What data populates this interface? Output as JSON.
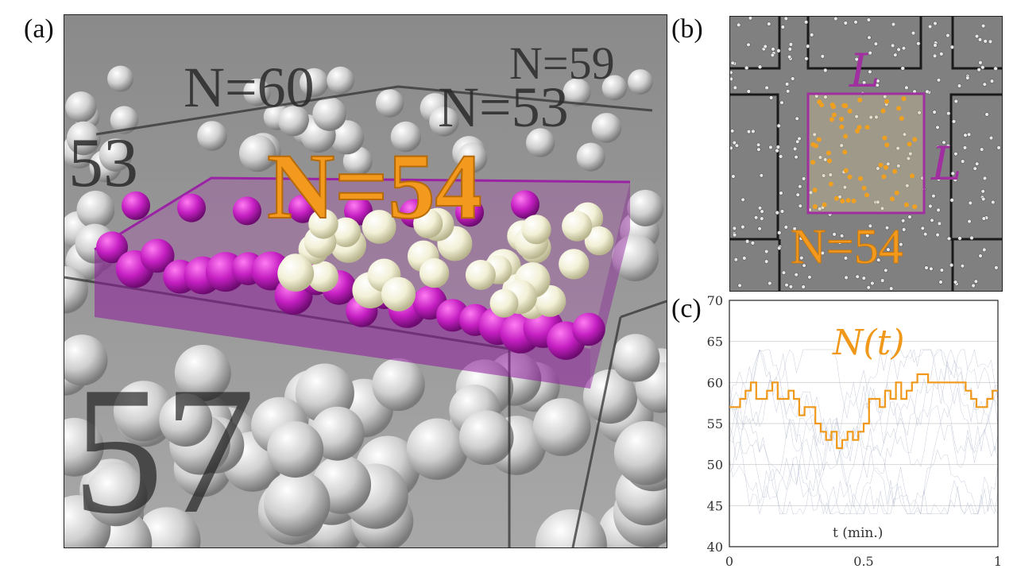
{
  "figure": {
    "panel_a_label": "(a)",
    "panel_b_label": "(b)",
    "panel_c_label": "(c)"
  },
  "panel_a": {
    "main_label": "N=54",
    "background_labels": [
      "N=60",
      "N=53",
      "53",
      "N=59",
      "57"
    ],
    "colors": {
      "box": "#8e1a9a",
      "highlight": "#f39a1e",
      "particles": "#e9e9e1"
    }
  },
  "panel_b": {
    "side_label_top": "L",
    "side_label_right": "L",
    "count_label": "N=54",
    "colors": {
      "box": "#a0309f",
      "particles": "#f0a020",
      "label": "#f39a1e"
    }
  },
  "chart_data": {
    "type": "line",
    "title": "N(t)",
    "xlabel": "t (min.)",
    "ylabel": "",
    "xlim": [
      0,
      1
    ],
    "ylim": [
      40,
      70
    ],
    "x_ticks": [
      "0",
      "0.5",
      "1"
    ],
    "y_ticks": [
      "40",
      "45",
      "50",
      "55",
      "60",
      "65",
      "70"
    ],
    "grid": true,
    "series": [
      {
        "color": "#f0981a",
        "x": [
          0,
          0.02,
          0.04,
          0.06,
          0.08,
          0.1,
          0.12,
          0.14,
          0.16,
          0.18,
          0.2,
          0.22,
          0.24,
          0.26,
          0.28,
          0.3,
          0.32,
          0.34,
          0.36,
          0.38,
          0.4,
          0.42,
          0.44,
          0.46,
          0.48,
          0.5,
          0.52,
          0.54,
          0.56,
          0.58,
          0.6,
          0.62,
          0.64,
          0.66,
          0.68,
          0.7,
          0.72,
          0.74,
          0.76,
          0.78,
          0.8,
          0.82,
          0.84,
          0.86,
          0.88,
          0.9,
          0.92,
          0.94,
          0.96,
          0.98,
          1.0
        ],
        "y": [
          57,
          57,
          58,
          59,
          60,
          58,
          58,
          59,
          60,
          58,
          58,
          59,
          58,
          56,
          57,
          57,
          55,
          54,
          53,
          54,
          52,
          53,
          54,
          53,
          54,
          55,
          58,
          58,
          57,
          59,
          58,
          60,
          58,
          59,
          60,
          61,
          61,
          60,
          60,
          60,
          60,
          60,
          60,
          60,
          59,
          58,
          57,
          57,
          58,
          59,
          59
        ]
      }
    ]
  }
}
